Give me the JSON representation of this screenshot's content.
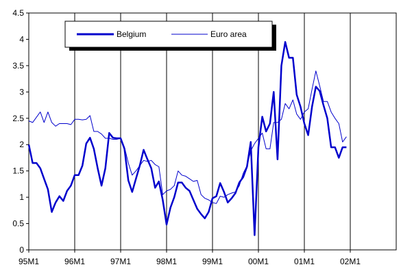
{
  "chart_data": {
    "type": "line",
    "x_ticks": [
      "95M1",
      "96M1",
      "97M1",
      "98M1",
      "99M1",
      "00M1",
      "01M1",
      "02M1"
    ],
    "x_months": [
      "1995-01",
      "1995-02",
      "1995-03",
      "1995-04",
      "1995-05",
      "1995-06",
      "1995-07",
      "1995-08",
      "1995-09",
      "1995-10",
      "1995-11",
      "1995-12",
      "1996-01",
      "1996-02",
      "1996-03",
      "1996-04",
      "1996-05",
      "1996-06",
      "1996-07",
      "1996-08",
      "1996-09",
      "1996-10",
      "1996-11",
      "1996-12",
      "1997-01",
      "1997-02",
      "1997-03",
      "1997-04",
      "1997-05",
      "1997-06",
      "1997-07",
      "1997-08",
      "1997-09",
      "1997-10",
      "1997-11",
      "1997-12",
      "1998-01",
      "1998-02",
      "1998-03",
      "1998-04",
      "1998-05",
      "1998-06",
      "1998-07",
      "1998-08",
      "1998-09",
      "1998-10",
      "1998-11",
      "1998-12",
      "1999-01",
      "1999-02",
      "1999-03",
      "1999-04",
      "1999-05",
      "1999-06",
      "1999-07",
      "1999-08",
      "1999-09",
      "1999-10",
      "1999-11",
      "1999-12",
      "2000-01",
      "2000-02",
      "2000-03",
      "2000-04",
      "2000-05",
      "2000-06",
      "2000-07",
      "2000-08",
      "2000-09",
      "2000-10",
      "2000-11",
      "2000-12",
      "2001-01",
      "2001-02",
      "2001-03",
      "2001-04",
      "2001-05",
      "2001-06",
      "2001-07",
      "2001-08",
      "2001-09",
      "2001-10",
      "2001-11",
      "2001-12"
    ],
    "y_ticks": [
      "0",
      "0.5",
      "1",
      "1.5",
      "2",
      "2.5",
      "3",
      "3.5",
      "4",
      "4.5"
    ],
    "ylim": [
      0,
      4.5
    ],
    "grid": "vertical",
    "legend_position": "top-left",
    "series": [
      {
        "name": "Belgium",
        "color": "#0000cc",
        "width": "thick",
        "values": [
          2.0,
          1.65,
          1.65,
          1.55,
          1.35,
          1.15,
          0.72,
          0.9,
          1.02,
          0.93,
          1.12,
          1.22,
          1.42,
          1.42,
          1.6,
          2.02,
          2.13,
          1.92,
          1.55,
          1.22,
          1.55,
          2.22,
          2.13,
          2.12,
          2.12,
          1.92,
          1.32,
          1.1,
          1.35,
          1.6,
          1.9,
          1.72,
          1.55,
          1.18,
          1.3,
          0.95,
          0.48,
          0.8,
          1.0,
          1.28,
          1.28,
          1.18,
          1.12,
          0.95,
          0.78,
          0.68,
          0.6,
          0.72,
          0.98,
          1.02,
          1.27,
          1.1,
          0.9,
          0.98,
          1.08,
          1.28,
          1.38,
          1.58,
          2.05,
          0.28,
          1.95,
          2.53,
          2.25,
          2.4,
          3.0,
          1.72,
          3.5,
          3.95,
          3.65,
          3.65,
          2.95,
          2.72,
          2.4,
          2.18,
          2.72,
          3.1,
          3.02,
          2.75,
          2.5,
          1.95,
          1.95,
          1.75,
          1.95,
          1.95
        ]
      },
      {
        "name": "Euro area",
        "color": "#0000cc",
        "width": "thin",
        "values": [
          2.45,
          2.42,
          2.52,
          2.62,
          2.42,
          2.62,
          2.42,
          2.35,
          2.4,
          2.4,
          2.4,
          2.38,
          2.48,
          2.48,
          2.47,
          2.48,
          2.55,
          2.25,
          2.25,
          2.2,
          2.12,
          2.12,
          2.1,
          2.1,
          2.12,
          1.95,
          1.65,
          1.42,
          1.5,
          1.6,
          1.7,
          1.68,
          1.7,
          1.62,
          1.58,
          1.05,
          1.12,
          1.15,
          1.22,
          1.5,
          1.42,
          1.4,
          1.35,
          1.3,
          1.32,
          1.05,
          0.98,
          0.95,
          0.9,
          0.88,
          1.02,
          1.0,
          1.05,
          1.08,
          1.1,
          1.22,
          1.45,
          1.6,
          1.88,
          2.02,
          2.12,
          2.22,
          1.92,
          1.92,
          2.42,
          2.42,
          2.48,
          2.78,
          2.68,
          2.85,
          2.58,
          2.48,
          2.62,
          2.68,
          3.05,
          3.4,
          3.12,
          2.82,
          2.82,
          2.62,
          2.5,
          2.4,
          2.05,
          2.15
        ]
      }
    ]
  }
}
